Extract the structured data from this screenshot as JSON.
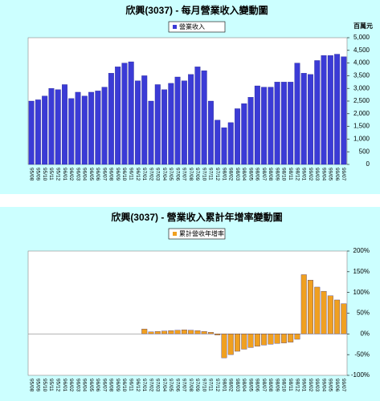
{
  "chart_data": [
    {
      "type": "bar",
      "title": "欣興(3037) - 每月營業收入變動圖",
      "y_unit": "百萬元",
      "axis_side": "right",
      "grid": false,
      "categories": [
        "95/08",
        "95/09",
        "95/10",
        "95/11",
        "95/12",
        "96/01",
        "96/02",
        "96/03",
        "96/04",
        "96/05",
        "96/06",
        "96/07",
        "96/08",
        "96/09",
        "96/10",
        "96/11",
        "96/12",
        "97/01",
        "97/02",
        "97/03",
        "97/04",
        "97/05",
        "97/06",
        "97/07",
        "97/08",
        "97/09",
        "97/10",
        "97/11",
        "97/12",
        "98/01",
        "98/02",
        "98/03",
        "98/04",
        "98/05",
        "98/06",
        "98/07",
        "98/08",
        "98/09",
        "98/10",
        "98/11",
        "98/12",
        "99/01",
        "99/02",
        "99/03",
        "99/04",
        "99/05",
        "99/06",
        "99/07"
      ],
      "series": [
        {
          "name": "營業收入",
          "color": "#3b3bd6",
          "values": [
            2500,
            2550,
            2700,
            3000,
            2950,
            3150,
            2600,
            2850,
            2700,
            2850,
            2900,
            3050,
            3600,
            3850,
            4000,
            4050,
            3300,
            3500,
            2500,
            3150,
            2950,
            3200,
            3450,
            3300,
            3550,
            3850,
            3700,
            2500,
            1750,
            1450,
            1650,
            2200,
            2400,
            2650,
            3100,
            3050,
            3050,
            3250,
            3250,
            3250,
            4000,
            3600,
            3550,
            4100,
            4300,
            4300,
            4350,
            4250
          ]
        }
      ],
      "ylim": [
        0,
        5000
      ],
      "yticks": [
        0,
        500,
        {
          "value": 1000,
          "label": "1,000"
        },
        {
          "value": 1500,
          "label": "1,500"
        },
        {
          "value": 2000,
          "label": "2,000"
        },
        {
          "value": 2500,
          "label": "2,500"
        },
        {
          "value": 3000,
          "label": "3,000"
        },
        {
          "value": 3500,
          "label": "3,500"
        },
        {
          "value": 4000,
          "label": "4,000"
        },
        {
          "value": 4500,
          "label": "4,500"
        },
        {
          "value": 5000,
          "label": "5,000"
        }
      ]
    },
    {
      "type": "bar",
      "title": "欣興(3037) -  營業收入累計年增率變動圖",
      "axis_side": "right",
      "grid": false,
      "categories": [
        "95/08",
        "95/09",
        "95/10",
        "95/11",
        "95/12",
        "96/01",
        "96/02",
        "96/03",
        "96/04",
        "96/05",
        "96/06",
        "96/07",
        "96/08",
        "96/09",
        "96/10",
        "96/11",
        "96/12",
        "97/01",
        "97/02",
        "97/03",
        "97/04",
        "97/05",
        "97/06",
        "97/07",
        "97/08",
        "97/09",
        "97/10",
        "97/11",
        "97/12",
        "98/01",
        "98/02",
        "98/03",
        "98/04",
        "98/05",
        "98/06",
        "98/07",
        "98/08",
        "98/09",
        "98/10",
        "98/11",
        "98/12",
        "99/01",
        "99/02",
        "99/03",
        "99/04",
        "99/05",
        "99/06",
        "99/07"
      ],
      "series": [
        {
          "name": "累計營收年增率",
          "color": "#f0a020",
          "values": [
            0,
            0,
            0,
            0,
            0,
            0,
            0,
            0,
            0,
            0,
            0,
            0,
            0,
            0,
            0,
            0,
            0,
            12,
            5,
            6,
            7,
            8,
            9,
            10,
            9,
            8,
            6,
            4,
            -3,
            -58,
            -50,
            -42,
            -37,
            -33,
            -30,
            -27,
            -25,
            -23,
            -22,
            -20,
            -13,
            143,
            130,
            113,
            103,
            92,
            82,
            73
          ]
        }
      ],
      "ylim": [
        -100,
        200
      ],
      "yticks": [
        {
          "value": -100,
          "label": "-100%"
        },
        {
          "value": -50,
          "label": "-50%"
        },
        {
          "value": 0,
          "label": "0%"
        },
        {
          "value": 50,
          "label": "50%"
        },
        {
          "value": 100,
          "label": "100%"
        },
        {
          "value": 150,
          "label": "150%"
        },
        {
          "value": 200,
          "label": "200%"
        }
      ]
    }
  ]
}
